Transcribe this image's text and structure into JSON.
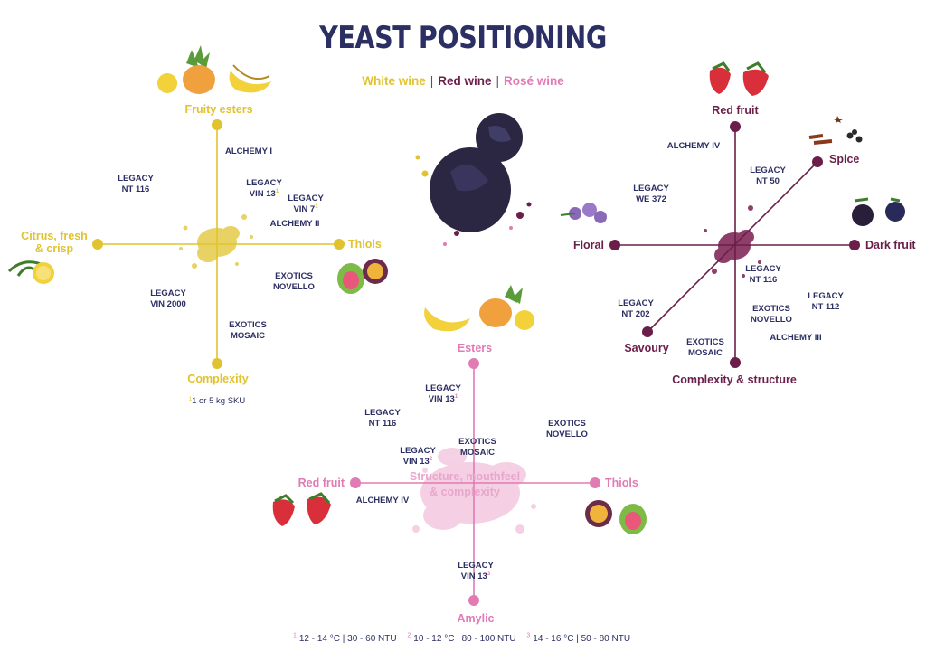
{
  "title": "YEAST POSITIONING",
  "legend": [
    {
      "label": "White wine",
      "color": "#e1c330"
    },
    {
      "label": "Red wine",
      "color": "#6b1e4a"
    },
    {
      "label": "Rosé wine",
      "color": "#e17bb4"
    }
  ],
  "legend_separator": "|",
  "colors": {
    "white": "#e1c330",
    "red": "#6b1e4a",
    "rose": "#e17bb4",
    "navy": "#2b2f63",
    "rose_light": "#f3c5df"
  },
  "white_chart": {
    "axes": {
      "top": "Fruity esters",
      "left": "Citrus, fresh & crisp",
      "right": "Thiols",
      "bottom": "Complexity"
    },
    "products": [
      {
        "lines": [
          "ALCHEMY I"
        ],
        "sup": ""
      },
      {
        "lines": [
          "LEGACY",
          "NT 116"
        ],
        "sup": ""
      },
      {
        "lines": [
          "LEGACY",
          "VIN 13"
        ],
        "sup": "1"
      },
      {
        "lines": [
          "LEGACY",
          "VIN 7"
        ],
        "sup": "1"
      },
      {
        "lines": [
          "ALCHEMY II"
        ],
        "sup": ""
      },
      {
        "lines": [
          "EXOTICS",
          "NOVELLO"
        ],
        "sup": ""
      },
      {
        "lines": [
          "LEGACY",
          "VIN 2000"
        ],
        "sup": ""
      },
      {
        "lines": [
          "EXOTICS",
          "MOSAIC"
        ],
        "sup": ""
      }
    ],
    "note": {
      "sup": "1",
      "text": "1 or 5 kg SKU"
    }
  },
  "red_chart": {
    "axes": {
      "top": "Red fruit",
      "spice": "Spice",
      "left": "Floral",
      "right": "Dark fruit",
      "savoury": "Savoury",
      "bottom": "Complexity & structure"
    },
    "products": [
      {
        "lines": [
          "ALCHEMY IV"
        ]
      },
      {
        "lines": [
          "LEGACY",
          "NT 50"
        ]
      },
      {
        "lines": [
          "LEGACY",
          "WE 372"
        ]
      },
      {
        "lines": [
          "LEGACY",
          "NT 116"
        ]
      },
      {
        "lines": [
          "LEGACY",
          "NT 202"
        ]
      },
      {
        "lines": [
          "EXOTICS",
          "NOVELLO"
        ]
      },
      {
        "lines": [
          "LEGACY",
          "NT 112"
        ]
      },
      {
        "lines": [
          "EXOTICS",
          "MOSAIC"
        ]
      },
      {
        "lines": [
          "ALCHEMY III"
        ]
      }
    ]
  },
  "rose_chart": {
    "axes": {
      "top": "Esters",
      "left": "Red fruit",
      "right": "Thiols",
      "bottom": "Amylic"
    },
    "center": [
      "Structure, mouthfeel",
      "& complexity"
    ],
    "products": [
      {
        "lines": [
          "LEGACY",
          "VIN 13"
        ],
        "sup": "1"
      },
      {
        "lines": [
          "LEGACY",
          "NT 116"
        ],
        "sup": ""
      },
      {
        "lines": [
          "EXOTICS",
          "NOVELLO"
        ],
        "sup": ""
      },
      {
        "lines": [
          "EXOTICS",
          "MOSAIC"
        ],
        "sup": ""
      },
      {
        "lines": [
          "LEGACY",
          "VIN 13"
        ],
        "sup": "2"
      },
      {
        "lines": [
          "ALCHEMY IV"
        ],
        "sup": ""
      },
      {
        "lines": [
          "LEGACY",
          "VIN 13"
        ],
        "sup": "3"
      }
    ]
  },
  "footnotes": [
    {
      "sup": "1",
      "text": "12 - 14 °C | 30 - 60 NTU"
    },
    {
      "sup": "2",
      "text": "10 - 12 °C | 80 - 100 NTU"
    },
    {
      "sup": "3",
      "text": "14 - 16 °C | 50 - 80 NTU"
    }
  ]
}
